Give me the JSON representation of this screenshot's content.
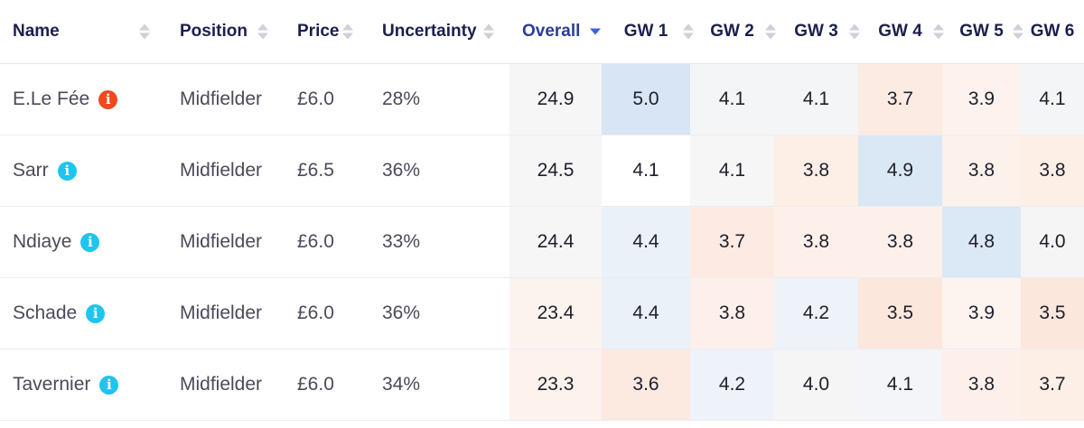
{
  "columns": {
    "name": "Name",
    "position": "Position",
    "price": "Price",
    "uncertainty": "Uncertainty",
    "overall": "Overall",
    "gw": [
      "GW 1",
      "GW 2",
      "GW 3",
      "GW 4",
      "GW 5",
      "GW 6"
    ]
  },
  "sort": {
    "column": "Overall",
    "direction": "descending"
  },
  "colors": {
    "accent_sort": "#3c63d9",
    "info_default": "#1ec5ef",
    "info_alert": "#ef4a1d",
    "cell_high": "#dbe8f6",
    "cell_mid": "#f5f5f5",
    "cell_low": "#fde9e1"
  },
  "rows": [
    {
      "name": "E.Le Fée",
      "icon": "info-icon-alert",
      "position": "Midfielder",
      "price": "£6.0",
      "uncertainty": "28%",
      "overall": "24.9",
      "gw": [
        "5.0",
        "4.1",
        "4.1",
        "3.7",
        "3.9",
        "4.1"
      ]
    },
    {
      "name": "Sarr",
      "icon": "info-icon",
      "position": "Midfielder",
      "price": "£6.5",
      "uncertainty": "36%",
      "overall": "24.5",
      "gw": [
        "4.1",
        "4.1",
        "3.8",
        "4.9",
        "3.8",
        "3.8"
      ]
    },
    {
      "name": "Ndiaye",
      "icon": "info-icon",
      "position": "Midfielder",
      "price": "£6.0",
      "uncertainty": "33%",
      "overall": "24.4",
      "gw": [
        "4.4",
        "3.7",
        "3.8",
        "3.8",
        "4.8",
        "4.0"
      ]
    },
    {
      "name": "Schade",
      "icon": "info-icon",
      "position": "Midfielder",
      "price": "£6.0",
      "uncertainty": "36%",
      "overall": "23.4",
      "gw": [
        "4.4",
        "3.8",
        "4.2",
        "3.5",
        "3.9",
        "3.5"
      ]
    },
    {
      "name": "Tavernier",
      "icon": "info-icon",
      "position": "Midfielder",
      "price": "£6.0",
      "uncertainty": "34%",
      "overall": "23.3",
      "gw": [
        "3.6",
        "4.2",
        "4.0",
        "4.1",
        "3.8",
        "3.7"
      ]
    }
  ]
}
